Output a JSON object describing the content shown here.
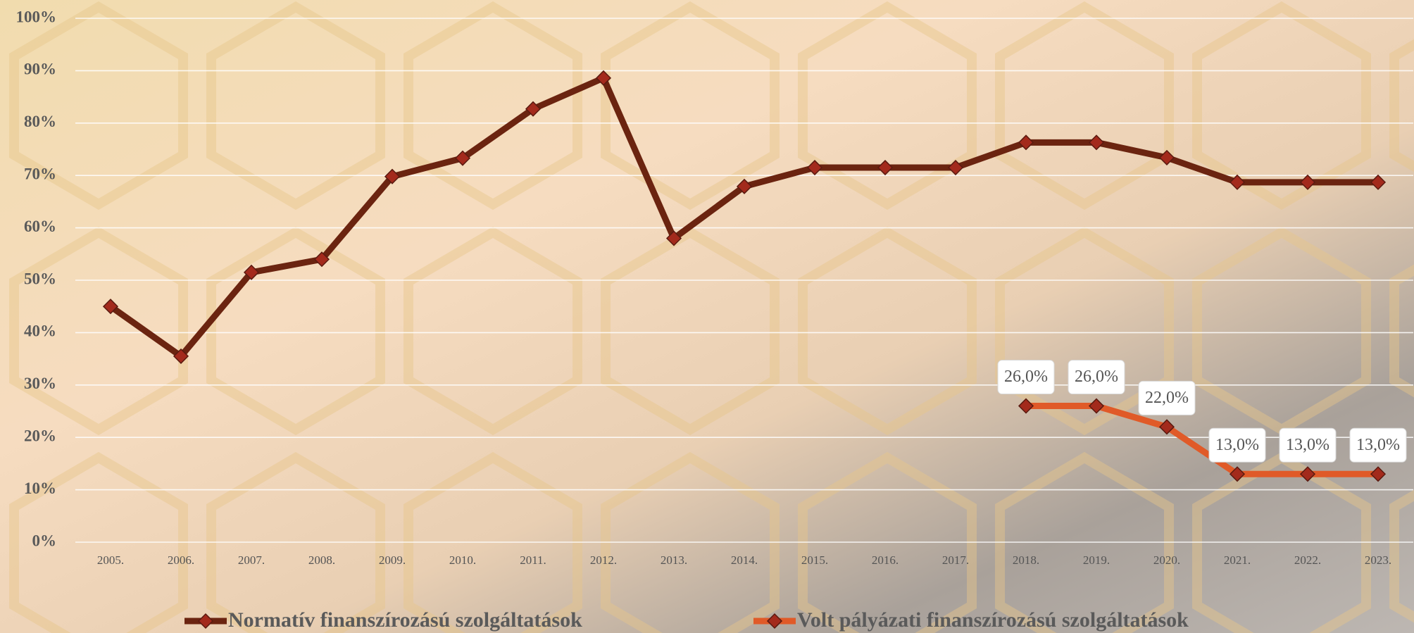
{
  "chart_data": {
    "type": "line",
    "categories": [
      "2005.",
      "2006.",
      "2007.",
      "2008.",
      "2009.",
      "2010.",
      "2011.",
      "2012.",
      "2013.",
      "2014.",
      "2015.",
      "2016.",
      "2017.",
      "2018.",
      "2019.",
      "2020.",
      "2021.",
      "2022.",
      "2023."
    ],
    "series": [
      {
        "name": "Normatív finanszírozású szolgáltatások",
        "color": "#6b2410",
        "values": [
          45,
          35.5,
          51.5,
          54,
          69.8,
          73.3,
          82.7,
          88.6,
          58,
          67.9,
          71.5,
          71.5,
          71.5,
          76.3,
          76.3,
          73.4,
          68.7,
          68.7,
          68.7
        ]
      },
      {
        "name": "Volt pályázati finanszírozású szolgáltatások",
        "color": "#e05a28",
        "values": [
          null,
          null,
          null,
          null,
          null,
          null,
          null,
          null,
          null,
          null,
          null,
          null,
          null,
          26,
          26,
          22,
          13,
          13,
          13
        ],
        "value_labels": [
          null,
          null,
          null,
          null,
          null,
          null,
          null,
          null,
          null,
          null,
          null,
          null,
          null,
          "26,0%",
          "26,0%",
          "22,0%",
          "13,0%",
          "13,0%",
          "13,0%"
        ]
      }
    ],
    "marker_color": "#a32a1c",
    "ylim": [
      0,
      100
    ],
    "yticks": [
      {
        "value": 0,
        "label": "0%"
      },
      {
        "value": 10,
        "label": "10%"
      },
      {
        "value": 20,
        "label": "20%"
      },
      {
        "value": 30,
        "label": "30%"
      },
      {
        "value": 40,
        "label": "40%"
      },
      {
        "value": 50,
        "label": "50%"
      },
      {
        "value": 60,
        "label": "60%"
      },
      {
        "value": 70,
        "label": "70%"
      },
      {
        "value": 80,
        "label": "80%"
      },
      {
        "value": 90,
        "label": "90%"
      },
      {
        "value": 100,
        "label": "100%"
      }
    ],
    "grid": true,
    "legend": "bottom"
  }
}
